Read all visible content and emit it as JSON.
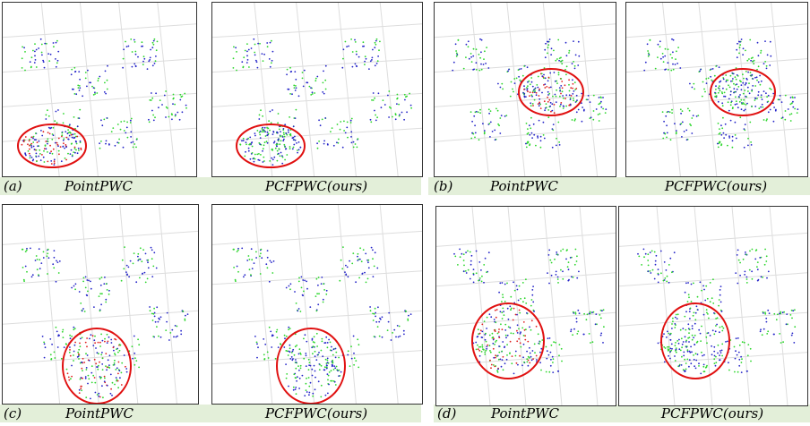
{
  "panels": [
    {
      "label": "(a)",
      "images": [
        {
          "caption": "PointPWC"
        },
        {
          "caption": "PCFPWC(ours)"
        }
      ]
    },
    {
      "label": "(b)",
      "images": [
        {
          "caption": "PointPWC"
        },
        {
          "caption": "PCFPWC(ours)"
        }
      ]
    },
    {
      "label": "(c)",
      "images": [
        {
          "caption": "PointPWC"
        },
        {
          "caption": "PCFPWC(ours)"
        }
      ]
    },
    {
      "label": "(d)",
      "images": [
        {
          "caption": "PointPWC"
        },
        {
          "caption": "PCFPWC(ours)"
        }
      ]
    }
  ]
}
